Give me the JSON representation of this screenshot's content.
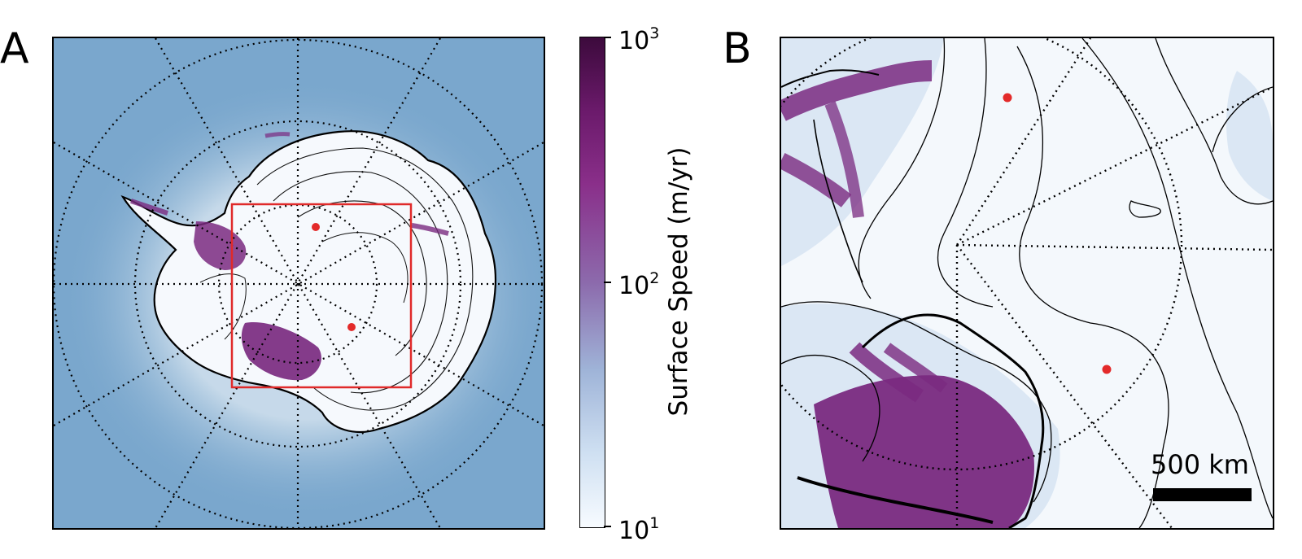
{
  "panels": {
    "a_letter": "A",
    "b_letter": "B"
  },
  "colorbar": {
    "title": "Surface Speed (m/yr)",
    "scale": "log",
    "range": [
      10,
      1000
    ],
    "ticks": [
      {
        "base": "10",
        "exp": "3"
      },
      {
        "base": "10",
        "exp": "2"
      },
      {
        "base": "10",
        "exp": "1"
      }
    ],
    "colors": [
      "#f7fbff",
      "#9fb4d8",
      "#8c6aac",
      "#6b1a6b",
      "#3c0a3c"
    ]
  },
  "scale_bar": {
    "label": "500 km"
  },
  "colors": {
    "ocean": "#7aa7cd",
    "ice_slow": "#f7fbff",
    "ice_fast": "#6b1a6b",
    "marker": "#e32a2a",
    "inset_box": "#e02a2a"
  }
}
